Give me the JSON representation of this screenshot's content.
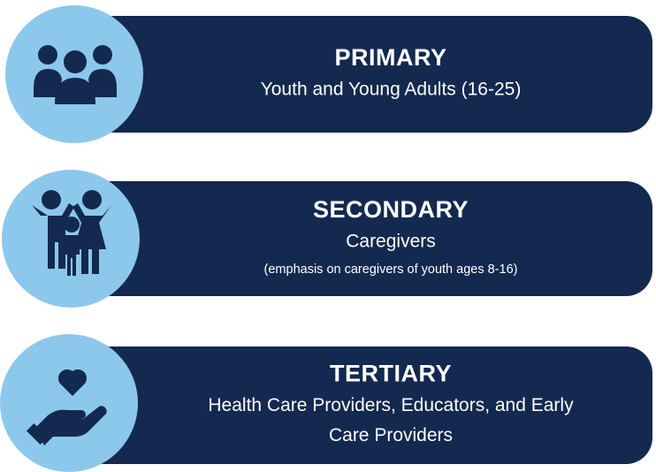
{
  "items": [
    {
      "title": "PRIMARY",
      "lines": [
        "Youth and Young Adults (16-25)"
      ]
    },
    {
      "title": "SECONDARY",
      "lines": [
        "Caregivers"
      ],
      "note": "(emphasis on caregivers of youth ages 8-16)"
    },
    {
      "title": "TERTIARY",
      "lines": [
        "Health Care Providers, Educators, and Early",
        "Care Providers"
      ]
    }
  ]
}
